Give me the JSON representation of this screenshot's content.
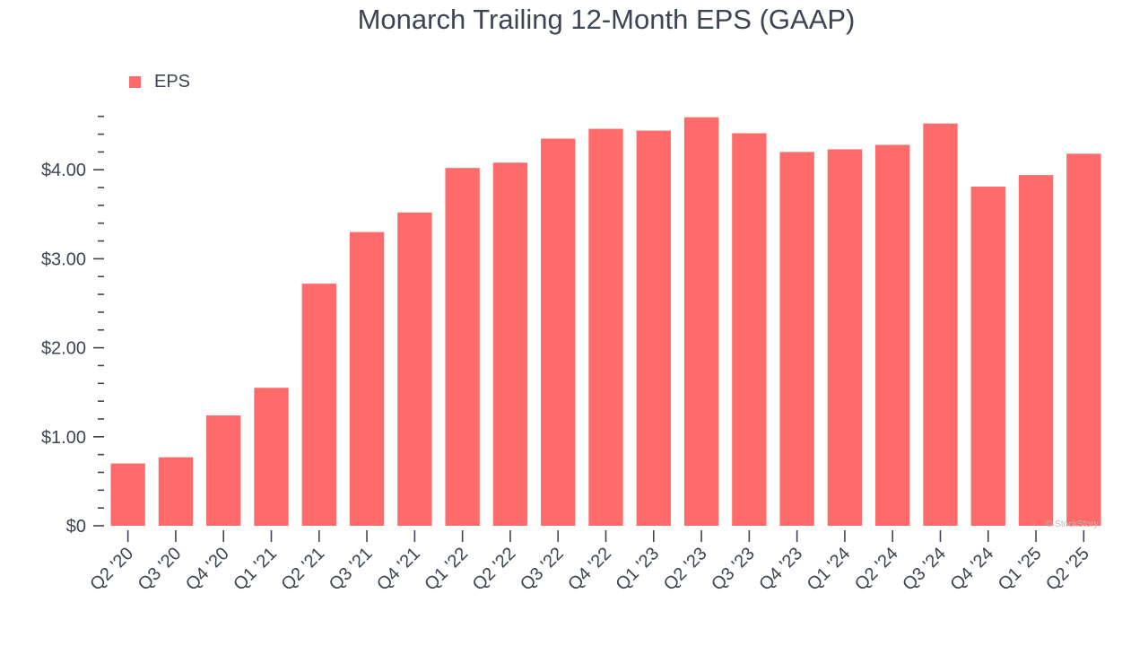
{
  "chart_data": {
    "type": "bar",
    "title": "Monarch Trailing 12-Month EPS (GAAP)",
    "xlabel": "",
    "ylabel": "",
    "ylim": [
      0,
      4.6
    ],
    "yticks": [
      0,
      1,
      2,
      3,
      4
    ],
    "ytick_labels": [
      "$0",
      "$1.00",
      "$2.00",
      "$3.00",
      "$4.00"
    ],
    "categories": [
      "Q2 '20",
      "Q3 '20",
      "Q4 '20",
      "Q1 '21",
      "Q2 '21",
      "Q3 '21",
      "Q4 '21",
      "Q1 '22",
      "Q2 '22",
      "Q3 '22",
      "Q4 '22",
      "Q1 '23",
      "Q2 '23",
      "Q3 '23",
      "Q4 '23",
      "Q1 '24",
      "Q2 '24",
      "Q3 '24",
      "Q4 '24",
      "Q1 '25",
      "Q2 '25"
    ],
    "series": [
      {
        "name": "EPS",
        "color": "#ff6b6b",
        "values": [
          0.7,
          0.77,
          1.24,
          1.55,
          2.72,
          3.3,
          3.52,
          4.02,
          4.08,
          4.35,
          4.46,
          4.44,
          4.59,
          4.41,
          4.2,
          4.23,
          4.28,
          4.52,
          3.81,
          3.94,
          4.18
        ]
      }
    ],
    "legend": {
      "position": "top-left"
    }
  },
  "watermark": "© StockStory"
}
